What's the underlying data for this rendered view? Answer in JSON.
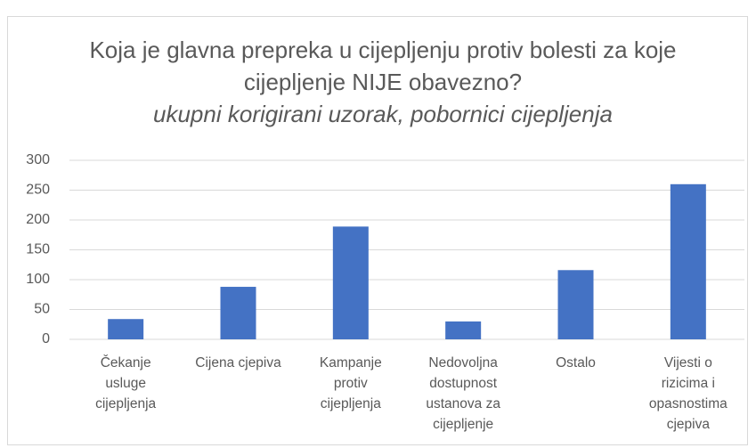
{
  "chart_data": {
    "type": "bar",
    "title": "Koja je glavna prepreka u cijepljenju protiv bolesti za koje cijepljenje NIJE obavezno?",
    "subtitle": "ukupni korigirani uzorak, pobornici cijepljenja",
    "categories": [
      "Čekanje usluge cijepljenja",
      "Cijena cjepiva",
      "Kampanje protiv cijepljenja",
      "Nedovoljna dostupnost ustanova za cijepljenje",
      "Ostalo",
      "Vijesti o rizicima i opasnostima cjepiva"
    ],
    "values": [
      34,
      88,
      189,
      30,
      116,
      260
    ],
    "color": "#4472c4",
    "ylim": [
      0,
      300
    ],
    "yticks": [
      0,
      50,
      100,
      150,
      200,
      250,
      300
    ],
    "grid": true
  }
}
